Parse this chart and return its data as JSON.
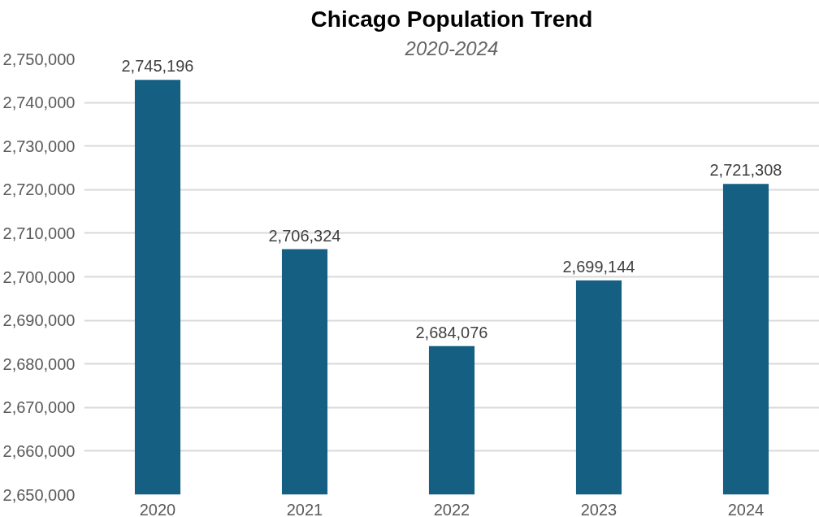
{
  "chart_data": {
    "type": "bar",
    "title": "Chicago Population Trend",
    "subtitle": "2020-2024",
    "categories": [
      "2020",
      "2021",
      "2022",
      "2023",
      "2024"
    ],
    "values": [
      2745196,
      2706324,
      2684076,
      2699144,
      2721308
    ],
    "color": "#155f82",
    "ylim": [
      2650000,
      2750000
    ],
    "yticks": [
      {
        "value": 2650000,
        "label": "2,650,000"
      },
      {
        "value": 2660000,
        "label": "2,660,000"
      },
      {
        "value": 2670000,
        "label": "2,670,000"
      },
      {
        "value": 2680000,
        "label": "2,680,000"
      },
      {
        "value": 2690000,
        "label": "2,690,000"
      },
      {
        "value": 2700000,
        "label": "2,700,000"
      },
      {
        "value": 2710000,
        "label": "2,710,000"
      },
      {
        "value": 2720000,
        "label": "2,720,000"
      },
      {
        "value": 2730000,
        "label": "2,730,000"
      },
      {
        "value": 2740000,
        "label": "2,740,000"
      },
      {
        "value": 2750000,
        "label": "2,750,000"
      }
    ],
    "value_labels": [
      "2,745,196",
      "2,706,324",
      "2,684,076",
      "2,699,144",
      "2,721,308"
    ],
    "grid": "y"
  }
}
